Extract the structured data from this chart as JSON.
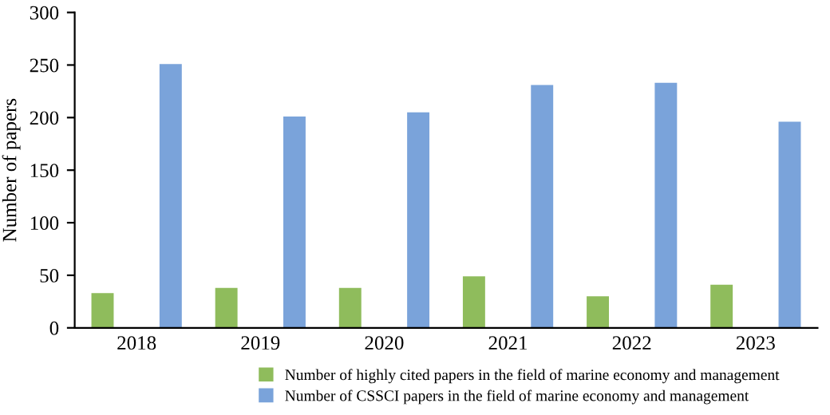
{
  "chart_data": {
    "type": "bar",
    "ylabel": "Number of papers",
    "categories": [
      "2018",
      "2019",
      "2020",
      "2021",
      "2022",
      "2023"
    ],
    "series": [
      {
        "name": "Number of highly cited papers in the field of marine economy and management",
        "color": "#8fbc5c",
        "values": [
          33,
          38,
          38,
          49,
          30,
          41
        ]
      },
      {
        "name": "Number of CSSCI papers in the field of marine economy and management",
        "color": "#7aa3da",
        "values": [
          251,
          201,
          205,
          231,
          233,
          196
        ]
      }
    ],
    "ylim": [
      0,
      300
    ],
    "yticks": [
      0,
      50,
      100,
      150,
      200,
      250,
      300
    ],
    "grid": false,
    "legend": "bottom"
  }
}
